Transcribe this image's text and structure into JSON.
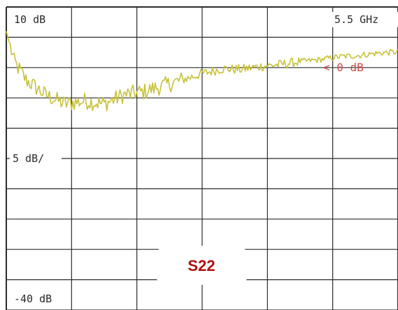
{
  "texts": {
    "top_left": "10 dB",
    "top_right": "5.5 GHz",
    "ref_marker": "< 0 dB",
    "scale": "5 dB/",
    "bottom_left": "-40 dB",
    "title_box": "S22"
  },
  "colors": {
    "grid": "#2b2b2b",
    "trace": "#c8c23a",
    "ref_marker": "#d04a4a",
    "title_box": "#b01010"
  },
  "chart_data": {
    "type": "line",
    "title": "S22",
    "ylim": [
      -40,
      10
    ],
    "y_scale_per_div": 5,
    "xlim_label_right": "5.5 GHz",
    "grid": true,
    "x": [
      0,
      0.02,
      0.05,
      0.1,
      0.15,
      0.2,
      0.25,
      0.3,
      0.35,
      0.4,
      0.45,
      0.5,
      0.55,
      0.6,
      0.65,
      0.7,
      0.75,
      0.8,
      0.85,
      0.9,
      0.95,
      1.0
    ],
    "series": [
      {
        "values": [
          6.0,
          1.0,
          -2.0,
          -4.5,
          -6.0,
          -5.5,
          -6.0,
          -4.5,
          -4.0,
          -3.0,
          -2.0,
          -1.0,
          -0.2,
          -0.3,
          0.2,
          0.5,
          1.0,
          1.3,
          1.8,
          2.0,
          2.4,
          2.6
        ]
      }
    ]
  }
}
